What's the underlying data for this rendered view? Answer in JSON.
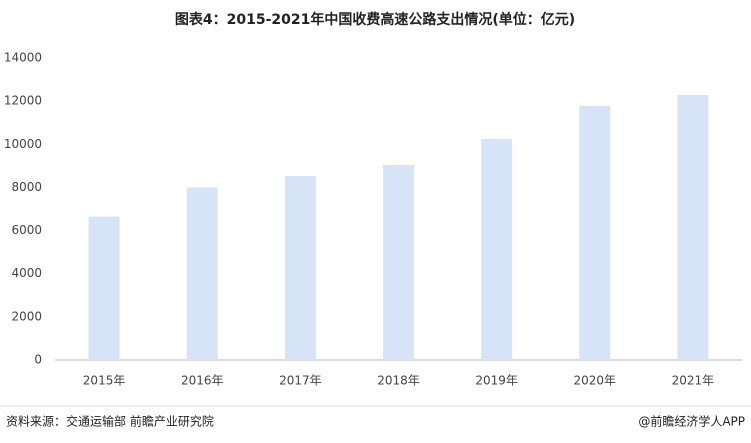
{
  "chart_data": {
    "type": "bar",
    "title": "图表4：2015-2021年中国收费高速公路支出情况(单位：亿元)",
    "categories": [
      "2015年",
      "2016年",
      "2017年",
      "2018年",
      "2019年",
      "2020年",
      "2021年"
    ],
    "values": [
      6650,
      8000,
      8530,
      9040,
      10245,
      11775,
      12285
    ],
    "color": "#d7e4f8",
    "ylim": [
      0,
      14000
    ],
    "yticks": [
      0,
      2000,
      4000,
      6000,
      8000,
      10000,
      12000,
      14000
    ],
    "grid": false,
    "source": "资料来源：交通运输部 前瞻产业研究院",
    "credit": "@前瞻经济学人APP"
  }
}
